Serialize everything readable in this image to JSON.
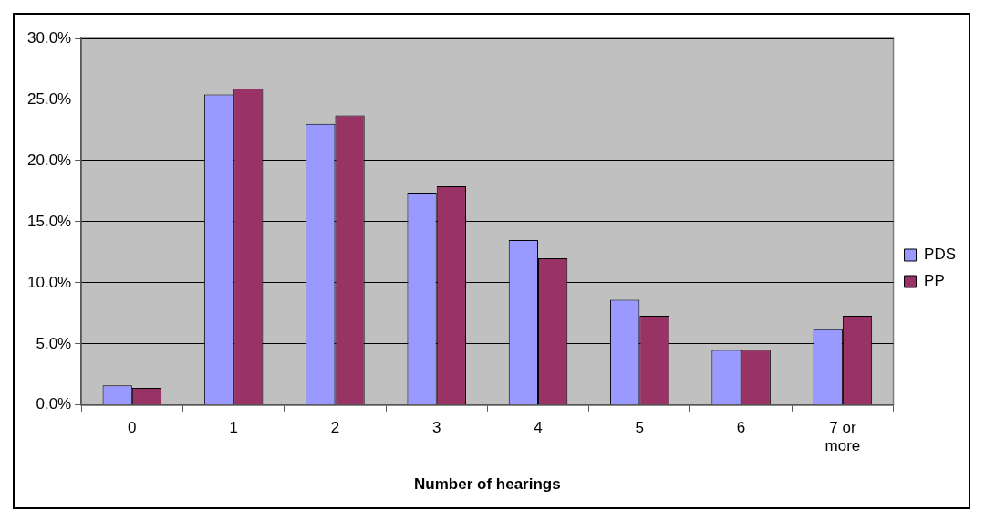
{
  "chart_data": {
    "type": "bar",
    "xlabel": "Number of hearings",
    "categories": [
      "0",
      "1",
      "2",
      "3",
      "4",
      "5",
      "6",
      "7 or more"
    ],
    "series": [
      {
        "name": "PDS",
        "color": "#9999ff",
        "values": [
          1.6,
          25.4,
          23.0,
          17.3,
          13.5,
          8.6,
          4.5,
          6.2
        ]
      },
      {
        "name": "PP",
        "color": "#993366",
        "values": [
          1.4,
          25.9,
          23.7,
          17.9,
          12.0,
          7.3,
          4.5,
          7.3
        ]
      }
    ],
    "ylim": [
      0,
      30
    ],
    "yticks": [
      {
        "value": 0,
        "label": "0.0%"
      },
      {
        "value": 5,
        "label": "5.0%"
      },
      {
        "value": 10,
        "label": "10.0%"
      },
      {
        "value": 15,
        "label": "15.0%"
      },
      {
        "value": 20,
        "label": "20.0%"
      },
      {
        "value": 25,
        "label": "25.0%"
      },
      {
        "value": 30,
        "label": "30.0%"
      }
    ],
    "grid": "y",
    "legend": "right"
  }
}
